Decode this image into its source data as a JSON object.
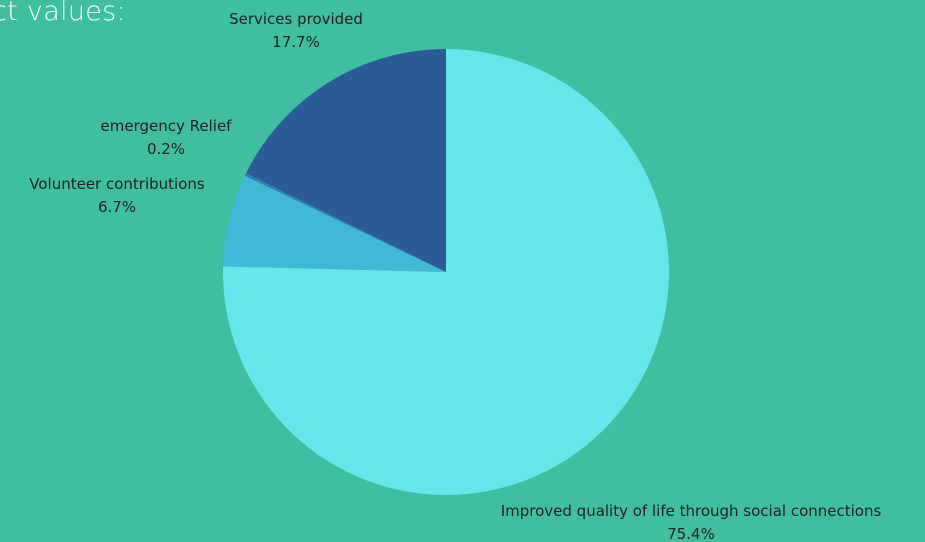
{
  "header": {
    "partial_title": "ct values:"
  },
  "chart_data": {
    "type": "pie",
    "slices": [
      {
        "label": "Improved quality of life through social connections",
        "value": 75.4,
        "value_label": "75.4%",
        "color": "#67e6e9"
      },
      {
        "label": "Volunteer contributions",
        "value": 6.7,
        "value_label": "6.7%",
        "color": "#41b8d6"
      },
      {
        "label": "emergency Relief",
        "value": 0.2,
        "value_label": "0.2%",
        "color": "#2d7fbf"
      },
      {
        "label": "Services provided",
        "value": 17.7,
        "value_label": "17.7%",
        "color": "#2c5c98"
      }
    ],
    "start_angle": "12 o'clock",
    "direction": "clockwise"
  }
}
